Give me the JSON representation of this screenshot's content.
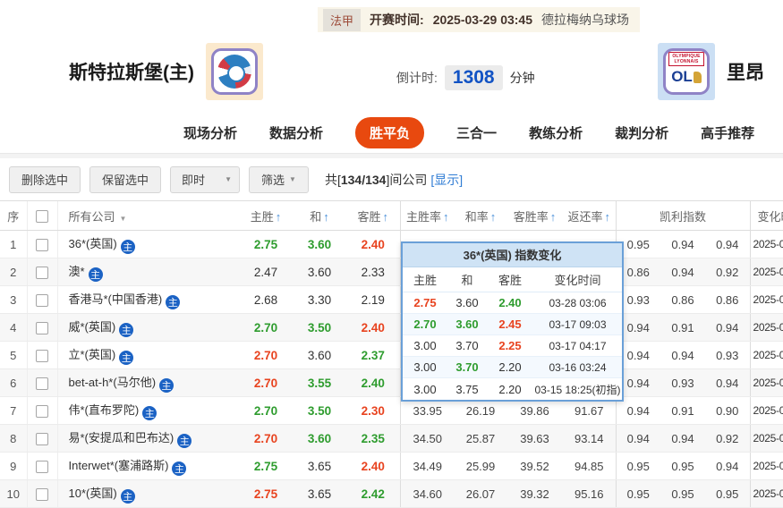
{
  "header": {
    "league": "法甲",
    "kickoff_label": "开赛时间:",
    "kickoff_time": "2025-03-29 03:45",
    "venue": "德拉梅纳乌球场",
    "home_team": "斯特拉斯堡(主)",
    "away_team": "里昂",
    "countdown_label": "倒计时:",
    "countdown_value": "1308",
    "countdown_unit": "分钟",
    "away_crest_text": "OLYMPIQUE LYONNAIS",
    "away_crest_initials": "OL"
  },
  "tabs": [
    {
      "label": "现场分析",
      "active": false
    },
    {
      "label": "数据分析",
      "active": false
    },
    {
      "label": "胜平负",
      "active": true
    },
    {
      "label": "三合一",
      "active": false
    },
    {
      "label": "教练分析",
      "active": false
    },
    {
      "label": "裁判分析",
      "active": false
    },
    {
      "label": "高手推荐",
      "active": false
    }
  ],
  "toolbar": {
    "delete_btn": "删除选中",
    "keep_btn": "保留选中",
    "realtime_btn": "即时",
    "filter_btn": "筛选",
    "count_prefix": "共[",
    "count_value": "134/134",
    "count_suffix": "]间公司",
    "show_link": "[显示]"
  },
  "table": {
    "headers": {
      "no": "序",
      "company": "所有公司",
      "home": "主胜",
      "draw": "和",
      "away": "客胜",
      "home_rate": "主胜率",
      "draw_rate": "和率",
      "away_rate": "客胜率",
      "return_rate": "返还率",
      "kelly": "凯利指数",
      "change": "变化时间"
    },
    "rows": [
      {
        "no": "1",
        "company": "36*(英国)",
        "odds": [
          {
            "v": "2.75",
            "c": "g"
          },
          {
            "v": "3.60",
            "c": "g"
          },
          {
            "v": "2.40",
            "c": "r"
          }
        ],
        "rates": [
          "",
          "",
          "",
          ""
        ],
        "kelly": [
          "0.95",
          "0.94",
          "0.94"
        ],
        "change": "2025-0"
      },
      {
        "no": "2",
        "company": "澳*",
        "odds": [
          {
            "v": "2.47",
            "c": ""
          },
          {
            "v": "3.60",
            "c": ""
          },
          {
            "v": "2.33",
            "c": ""
          }
        ],
        "rates": [
          "",
          "",
          "",
          ""
        ],
        "kelly": [
          "0.86",
          "0.94",
          "0.92"
        ],
        "change": "2025-0"
      },
      {
        "no": "3",
        "company": "香港马*(中国香港)",
        "odds": [
          {
            "v": "2.68",
            "c": ""
          },
          {
            "v": "3.30",
            "c": ""
          },
          {
            "v": "2.19",
            "c": ""
          }
        ],
        "rates": [
          "",
          "",
          "",
          ""
        ],
        "kelly": [
          "0.93",
          "0.86",
          "0.86"
        ],
        "change": "2025-0"
      },
      {
        "no": "4",
        "company": "威*(英国)",
        "odds": [
          {
            "v": "2.70",
            "c": "g"
          },
          {
            "v": "3.50",
            "c": "g"
          },
          {
            "v": "2.40",
            "c": "r"
          }
        ],
        "rates": [
          "",
          "",
          "",
          ""
        ],
        "kelly": [
          "0.94",
          "0.91",
          "0.94"
        ],
        "change": "2025-0"
      },
      {
        "no": "5",
        "company": "立*(英国)",
        "odds": [
          {
            "v": "2.70",
            "c": "r"
          },
          {
            "v": "3.60",
            "c": ""
          },
          {
            "v": "2.37",
            "c": "g"
          }
        ],
        "rates": [
          "",
          "",
          "",
          ""
        ],
        "kelly": [
          "0.94",
          "0.94",
          "0.93"
        ],
        "change": "2025-0"
      },
      {
        "no": "6",
        "company": "bet-at-h*(马尔他)",
        "odds": [
          {
            "v": "2.70",
            "c": "r"
          },
          {
            "v": "3.55",
            "c": "g"
          },
          {
            "v": "2.40",
            "c": "g"
          }
        ],
        "rates": [
          "",
          "",
          "",
          ""
        ],
        "kelly": [
          "0.94",
          "0.93",
          "0.94"
        ],
        "change": "2025-0"
      },
      {
        "no": "7",
        "company": "伟*(直布罗陀)",
        "odds": [
          {
            "v": "2.70",
            "c": "g"
          },
          {
            "v": "3.50",
            "c": "g"
          },
          {
            "v": "2.30",
            "c": "r"
          }
        ],
        "rates": [
          "33.95",
          "26.19",
          "39.86",
          "91.67"
        ],
        "kelly": [
          "0.94",
          "0.91",
          "0.90"
        ],
        "change": "2025-0"
      },
      {
        "no": "8",
        "company": "易*(安提瓜和巴布达)",
        "odds": [
          {
            "v": "2.70",
            "c": "r"
          },
          {
            "v": "3.60",
            "c": "g"
          },
          {
            "v": "2.35",
            "c": "g"
          }
        ],
        "rates": [
          "34.50",
          "25.87",
          "39.63",
          "93.14"
        ],
        "kelly": [
          "0.94",
          "0.94",
          "0.92"
        ],
        "change": "2025-0"
      },
      {
        "no": "9",
        "company": "Interwet*(塞浦路斯)",
        "odds": [
          {
            "v": "2.75",
            "c": "g"
          },
          {
            "v": "3.65",
            "c": ""
          },
          {
            "v": "2.40",
            "c": "r"
          }
        ],
        "rates": [
          "34.49",
          "25.99",
          "39.52",
          "94.85"
        ],
        "kelly": [
          "0.95",
          "0.95",
          "0.94"
        ],
        "change": "2025-0"
      },
      {
        "no": "10",
        "company": "10*(英国)",
        "odds": [
          {
            "v": "2.75",
            "c": "r"
          },
          {
            "v": "3.65",
            "c": ""
          },
          {
            "v": "2.42",
            "c": "g"
          }
        ],
        "rates": [
          "34.60",
          "26.07",
          "39.32",
          "95.16"
        ],
        "kelly": [
          "0.95",
          "0.95",
          "0.95"
        ],
        "change": "2025-0"
      }
    ]
  },
  "popup": {
    "title": "36*(英国) 指数变化",
    "columns": [
      "主胜",
      "和",
      "客胜",
      "变化时间"
    ],
    "rows": [
      {
        "vals": [
          {
            "v": "2.75",
            "c": "r"
          },
          {
            "v": "3.60",
            "c": ""
          },
          {
            "v": "2.40",
            "c": "g"
          }
        ],
        "time": "03-28 03:06"
      },
      {
        "vals": [
          {
            "v": "2.70",
            "c": "g"
          },
          {
            "v": "3.60",
            "c": "g"
          },
          {
            "v": "2.45",
            "c": "r"
          }
        ],
        "time": "03-17 09:03"
      },
      {
        "vals": [
          {
            "v": "3.00",
            "c": ""
          },
          {
            "v": "3.70",
            "c": ""
          },
          {
            "v": "2.25",
            "c": "r"
          }
        ],
        "time": "03-17 04:17"
      },
      {
        "vals": [
          {
            "v": "3.00",
            "c": ""
          },
          {
            "v": "3.70",
            "c": "g"
          },
          {
            "v": "2.20",
            "c": ""
          }
        ],
        "time": "03-16 03:24"
      },
      {
        "vals": [
          {
            "v": "3.00",
            "c": ""
          },
          {
            "v": "3.75",
            "c": ""
          },
          {
            "v": "2.20",
            "c": ""
          }
        ],
        "time": "03-15 18:25(初指)"
      }
    ]
  },
  "colors": {
    "accent_orange": "#e8490f",
    "odds_green": "#2e9c2e",
    "odds_red": "#e8431f",
    "link_blue": "#2f7cd4",
    "countdown_blue": "#1253c4",
    "popup_header_blue": "#cfe3f5"
  }
}
